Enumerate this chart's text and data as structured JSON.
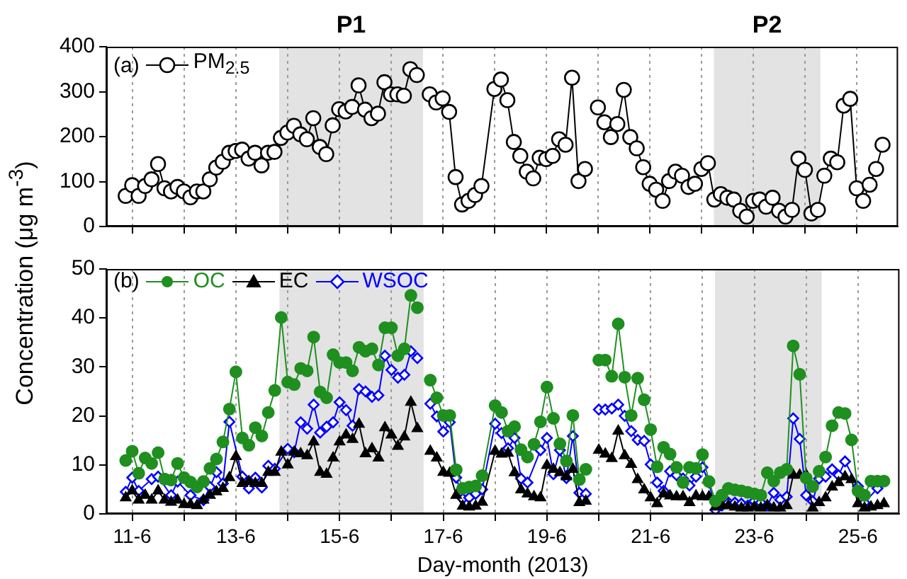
{
  "chart_data": [
    {
      "type": "line",
      "ylabel": "Concentration (μg m$^{-3}$)",
      "annotations": [
        "(a)"
      ],
      "xlim": [
        "2013-06-10T12:00",
        "2013-06-25T19:12"
      ],
      "xticks": [
        {
          "value": "2013-06-11",
          "label": null
        },
        {
          "value": "2013-06-12",
          "label": null
        },
        {
          "value": "2013-06-13",
          "label": null
        },
        {
          "value": "2013-06-14",
          "label": null
        },
        {
          "value": "2013-06-15",
          "label": null
        },
        {
          "value": "2013-06-16",
          "label": null
        },
        {
          "value": "2013-06-17",
          "label": null
        },
        {
          "value": "2013-06-18",
          "label": null
        },
        {
          "value": "2013-06-19",
          "label": null
        },
        {
          "value": "2013-06-20",
          "label": null
        },
        {
          "value": "2013-06-21",
          "label": null
        },
        {
          "value": "2013-06-22",
          "label": null
        },
        {
          "value": "2013-06-23",
          "label": null
        },
        {
          "value": "2013-06-24",
          "label": null
        },
        {
          "value": "2013-06-25",
          "label": null
        }
      ],
      "ylim": [
        0,
        400
      ],
      "yticks": [
        0,
        100,
        200,
        300,
        400
      ],
      "tick_labels": "y",
      "grid": "x",
      "legend": "top left",
      "bands": [
        {
          "axis": "x",
          "from": "2013-06-13T20:10",
          "to": "2013-06-16T14:53",
          "label": "P1",
          "color": "#e3e3e3"
        },
        {
          "axis": "x",
          "from": "2013-06-22T05:46",
          "to": "2013-06-24T07:12",
          "label": "P2",
          "color": "#e3e3e3"
        }
      ],
      "x": [
        "2013-06-10T21:00",
        "2013-06-11T00:00",
        "2013-06-11T03:00",
        "2013-06-11T06:00",
        "2013-06-11T09:00",
        "2013-06-11T12:00",
        "2013-06-11T15:00",
        "2013-06-11T18:00",
        "2013-06-11T21:00",
        "2013-06-12T00:00",
        "2013-06-12T03:00",
        "2013-06-12T06:00",
        "2013-06-12T09:00",
        "2013-06-12T12:00",
        "2013-06-12T15:00",
        "2013-06-12T18:00",
        "2013-06-12T21:00",
        "2013-06-13T00:00",
        "2013-06-13T03:00",
        "2013-06-13T06:00",
        "2013-06-13T09:00",
        "2013-06-13T12:00",
        "2013-06-13T15:00",
        "2013-06-13T18:00",
        "2013-06-13T21:00",
        "2013-06-14T00:00",
        "2013-06-14T03:00",
        "2013-06-14T06:00",
        "2013-06-14T09:00",
        "2013-06-14T12:00",
        "2013-06-14T15:00",
        "2013-06-14T18:00",
        "2013-06-14T21:00",
        "2013-06-15T00:00",
        "2013-06-15T03:00",
        "2013-06-15T06:00",
        "2013-06-15T09:00",
        "2013-06-15T12:00",
        "2013-06-15T15:00",
        "2013-06-15T18:00",
        "2013-06-15T21:00",
        "2013-06-16T00:00",
        "2013-06-16T03:00",
        "2013-06-16T06:00",
        "2013-06-16T09:00",
        "2013-06-16T12:00",
        "2013-06-16T15:00",
        "2013-06-16T18:00",
        "2013-06-16T21:00",
        "2013-06-17T00:00",
        "2013-06-17T03:00",
        "2013-06-17T06:00",
        "2013-06-17T09:00",
        "2013-06-17T12:00",
        "2013-06-17T15:00",
        "2013-06-17T18:00",
        "2013-06-18T00:00",
        "2013-06-18T03:00",
        "2013-06-18T06:00",
        "2013-06-18T09:00",
        "2013-06-18T12:00",
        "2013-06-18T15:00",
        "2013-06-18T18:00",
        "2013-06-18T21:00",
        "2013-06-19T00:00",
        "2013-06-19T03:00",
        "2013-06-19T06:00",
        "2013-06-19T09:00",
        "2013-06-19T12:00",
        "2013-06-19T15:00",
        "2013-06-19T18:00",
        "2013-06-19T21:00",
        "2013-06-20T00:00",
        "2013-06-20T03:00",
        "2013-06-20T06:00",
        "2013-06-20T09:00",
        "2013-06-20T12:00",
        "2013-06-20T15:00",
        "2013-06-20T18:00",
        "2013-06-20T21:00",
        "2013-06-21T00:00",
        "2013-06-21T03:00",
        "2013-06-21T06:00",
        "2013-06-21T09:00",
        "2013-06-21T12:00",
        "2013-06-21T15:00",
        "2013-06-21T18:00",
        "2013-06-21T21:00",
        "2013-06-22T00:00",
        "2013-06-22T03:00",
        "2013-06-22T06:00",
        "2013-06-22T09:00",
        "2013-06-22T12:00",
        "2013-06-22T15:00",
        "2013-06-22T18:00",
        "2013-06-22T21:00",
        "2013-06-23T00:00",
        "2013-06-23T03:00",
        "2013-06-23T06:00",
        "2013-06-23T09:00",
        "2013-06-23T12:00",
        "2013-06-23T15:00",
        "2013-06-23T18:00",
        "2013-06-23T21:00",
        "2013-06-24T00:00",
        "2013-06-24T03:00",
        "2013-06-24T06:00",
        "2013-06-24T09:00",
        "2013-06-24T12:00",
        "2013-06-24T15:00",
        "2013-06-24T18:00",
        "2013-06-24T21:00",
        "2013-06-25T00:00",
        "2013-06-25T03:00",
        "2013-06-25T06:00",
        "2013-06-25T09:00",
        "2013-06-25T12:00"
      ],
      "series": [
        {
          "name": "PM$_{2.5}$",
          "color": "#000000",
          "marker": "circle",
          "values": [
            68,
            92,
            68,
            90,
            105,
            139,
            85,
            78,
            88,
            78,
            65,
            78,
            78,
            105,
            131,
            144,
            164,
            168,
            171,
            151,
            164,
            136,
            164,
            166,
            197,
            209,
            224,
            205,
            194,
            241,
            177,
            161,
            225,
            261,
            256,
            266,
            314,
            260,
            241,
            251,
            321,
            294,
            294,
            291,
            350,
            337,
            null,
            294,
            276,
            285,
            255,
            110,
            49,
            57,
            70,
            90,
            306,
            327,
            281,
            188,
            157,
            122,
            107,
            153,
            150,
            157,
            194,
            182,
            331,
            101,
            128,
            null,
            265,
            232,
            199,
            228,
            304,
            199,
            174,
            132,
            95,
            82,
            57,
            101,
            122,
            113,
            88,
            95,
            128,
            141,
            60,
            72,
            64,
            60,
            35,
            22,
            57,
            60,
            44,
            64,
            35,
            22,
            37,
            151,
            126,
            29,
            37,
            113,
            151,
            143,
            269,
            284,
            85,
            57,
            93,
            128,
            182
          ]
        }
      ]
    },
    {
      "type": "line",
      "xlabel": "Day-month (2013)",
      "annotations": [
        "(b)"
      ],
      "xlim": [
        "2013-06-10T12:00",
        "2013-06-25T19:12"
      ],
      "xticks": [
        {
          "value": "2013-06-11",
          "label": "11-6"
        },
        {
          "value": "2013-06-12",
          "label": null
        },
        {
          "value": "2013-06-13",
          "label": "13-6"
        },
        {
          "value": "2013-06-14",
          "label": null
        },
        {
          "value": "2013-06-15",
          "label": "15-6"
        },
        {
          "value": "2013-06-16",
          "label": null
        },
        {
          "value": "2013-06-17",
          "label": "17-6"
        },
        {
          "value": "2013-06-18",
          "label": null
        },
        {
          "value": "2013-06-19",
          "label": "19-6"
        },
        {
          "value": "2013-06-20",
          "label": null
        },
        {
          "value": "2013-06-21",
          "label": "21-6"
        },
        {
          "value": "2013-06-22",
          "label": null
        },
        {
          "value": "2013-06-23",
          "label": "23-6"
        },
        {
          "value": "2013-06-24",
          "label": null
        },
        {
          "value": "2013-06-25",
          "label": "25-6"
        }
      ],
      "ylim": [
        0,
        50
      ],
      "yticks": [
        0,
        10,
        20,
        30,
        40,
        50
      ],
      "grid": "x",
      "legend": "top left",
      "bands": [
        {
          "axis": "x",
          "from": "2013-06-13T20:10",
          "to": "2013-06-16T14:53",
          "color": "#e3e3e3"
        },
        {
          "axis": "x",
          "from": "2013-06-22T05:46",
          "to": "2013-06-24T07:12",
          "color": "#e3e3e3"
        }
      ],
      "x": [
        "2013-06-10T21:00",
        "2013-06-11T00:00",
        "2013-06-11T03:00",
        "2013-06-11T06:00",
        "2013-06-11T09:00",
        "2013-06-11T12:00",
        "2013-06-11T15:00",
        "2013-06-11T18:00",
        "2013-06-11T21:00",
        "2013-06-12T00:00",
        "2013-06-12T03:00",
        "2013-06-12T06:00",
        "2013-06-12T09:00",
        "2013-06-12T12:00",
        "2013-06-12T15:00",
        "2013-06-12T18:00",
        "2013-06-12T21:00",
        "2013-06-13T00:00",
        "2013-06-13T03:00",
        "2013-06-13T06:00",
        "2013-06-13T09:00",
        "2013-06-13T12:00",
        "2013-06-13T15:00",
        "2013-06-13T18:00",
        "2013-06-13T21:00",
        "2013-06-14T00:00",
        "2013-06-14T03:00",
        "2013-06-14T06:00",
        "2013-06-14T09:00",
        "2013-06-14T12:00",
        "2013-06-14T15:00",
        "2013-06-14T18:00",
        "2013-06-14T21:00",
        "2013-06-15T00:00",
        "2013-06-15T03:00",
        "2013-06-15T06:00",
        "2013-06-15T09:00",
        "2013-06-15T12:00",
        "2013-06-15T15:00",
        "2013-06-15T18:00",
        "2013-06-15T21:00",
        "2013-06-16T00:00",
        "2013-06-16T03:00",
        "2013-06-16T06:00",
        "2013-06-16T09:00",
        "2013-06-16T12:00",
        "2013-06-16T15:00",
        "2013-06-16T18:00",
        "2013-06-16T21:00",
        "2013-06-17T00:00",
        "2013-06-17T03:00",
        "2013-06-17T06:00",
        "2013-06-17T09:00",
        "2013-06-17T12:00",
        "2013-06-17T15:00",
        "2013-06-17T18:00",
        "2013-06-18T00:00",
        "2013-06-18T03:00",
        "2013-06-18T06:00",
        "2013-06-18T09:00",
        "2013-06-18T12:00",
        "2013-06-18T15:00",
        "2013-06-18T18:00",
        "2013-06-18T21:00",
        "2013-06-19T00:00",
        "2013-06-19T03:00",
        "2013-06-19T06:00",
        "2013-06-19T09:00",
        "2013-06-19T12:00",
        "2013-06-19T15:00",
        "2013-06-19T18:00",
        "2013-06-19T21:00",
        "2013-06-20T00:00",
        "2013-06-20T03:00",
        "2013-06-20T06:00",
        "2013-06-20T09:00",
        "2013-06-20T12:00",
        "2013-06-20T15:00",
        "2013-06-20T18:00",
        "2013-06-20T21:00",
        "2013-06-21T00:00",
        "2013-06-21T03:00",
        "2013-06-21T06:00",
        "2013-06-21T09:00",
        "2013-06-21T12:00",
        "2013-06-21T15:00",
        "2013-06-21T18:00",
        "2013-06-21T21:00",
        "2013-06-22T00:00",
        "2013-06-22T03:00",
        "2013-06-22T06:00",
        "2013-06-22T09:00",
        "2013-06-22T12:00",
        "2013-06-22T15:00",
        "2013-06-22T18:00",
        "2013-06-22T21:00",
        "2013-06-23T00:00",
        "2013-06-23T03:00",
        "2013-06-23T06:00",
        "2013-06-23T09:00",
        "2013-06-23T12:00",
        "2013-06-23T15:00",
        "2013-06-23T18:00",
        "2013-06-23T21:00",
        "2013-06-24T00:00",
        "2013-06-24T03:00",
        "2013-06-24T06:00",
        "2013-06-24T09:00",
        "2013-06-24T12:00",
        "2013-06-24T15:00",
        "2013-06-24T18:00",
        "2013-06-24T21:00",
        "2013-06-25T00:00",
        "2013-06-25T03:00",
        "2013-06-25T06:00",
        "2013-06-25T09:00",
        "2013-06-25T12:00"
      ],
      "series": [
        {
          "name": "OC",
          "color": "#1f8f1f",
          "marker": "circle",
          "values": [
            10.9,
            12.8,
            8.3,
            11.4,
            10.3,
            12.5,
            7.1,
            6.9,
            10.3,
            7.4,
            6.5,
            5.5,
            6.6,
            9.3,
            11.2,
            14.7,
            21.4,
            29.0,
            15.5,
            14.0,
            17.6,
            15.9,
            20.7,
            25.2,
            40.1,
            26.9,
            26.4,
            29.7,
            29.2,
            36.1,
            24.9,
            23.7,
            32.5,
            30.9,
            30.9,
            29.2,
            34.0,
            33.2,
            33.7,
            30.4,
            38.0,
            38.0,
            32.3,
            33.7,
            44.6,
            42.1,
            null,
            27.3,
            23.7,
            20.1,
            20.1,
            9.0,
            5.2,
            5.5,
            5.7,
            7.8,
            22.1,
            20.7,
            16.9,
            17.8,
            13.1,
            11.6,
            14.2,
            18.8,
            25.9,
            19.5,
            14.3,
            10.8,
            20.1,
            7.0,
            9.1,
            null,
            31.4,
            31.4,
            28.1,
            38.8,
            27.9,
            20.1,
            27.7,
            23.3,
            17.2,
            9.6,
            13.6,
            12.2,
            9.5,
            6.4,
            9.5,
            9.3,
            12.1,
            6.6,
            2.6,
            3.8,
            5.2,
            4.9,
            4.7,
            4.4,
            4.1,
            3.8,
            8.4,
            6.7,
            8.4,
            9.1,
            34.3,
            28.5,
            7.3,
            5.6,
            8.7,
            11.6,
            18.0,
            20.7,
            20.5,
            15.1,
            4.7,
            3.8,
            6.7,
            6.7,
            6.7
          ]
        },
        {
          "name": "EC",
          "color": "#000000",
          "marker": "triangle",
          "values": [
            3.3,
            4.7,
            2.8,
            3.8,
            2.8,
            4.7,
            2.8,
            2.4,
            2.8,
            1.9,
            1.9,
            1.7,
            2.8,
            3.8,
            4.5,
            5.2,
            7.4,
            11.7,
            6.2,
            6.6,
            6.2,
            6.2,
            8.5,
            8.5,
            12.6,
            10.0,
            12.6,
            12.3,
            11.9,
            14.7,
            8.5,
            8.1,
            11.4,
            14.7,
            16.1,
            15.2,
            18.3,
            12.3,
            13.3,
            11.4,
            17.6,
            16.1,
            13.8,
            15.7,
            22.8,
            17.4,
            null,
            12.8,
            11.4,
            8.5,
            8.3,
            3.8,
            1.6,
            1.4,
            1.6,
            2.4,
            12.8,
            12.2,
            12.4,
            8.4,
            4.9,
            4.1,
            3.5,
            3.3,
            9.9,
            9.1,
            8.4,
            7.6,
            9.1,
            2.3,
            2.6,
            null,
            13.0,
            12.2,
            11.3,
            16.9,
            11.9,
            10.1,
            7.0,
            4.9,
            3.3,
            2.1,
            4.1,
            3.7,
            3.5,
            3.5,
            2.3,
            3.7,
            3.5,
            3.5,
            1.4,
            1.7,
            1.7,
            1.4,
            1.2,
            1.2,
            1.4,
            1.2,
            1.7,
            1.2,
            1.2,
            1.7,
            7.9,
            7.9,
            7.9,
            1.2,
            2.3,
            3.3,
            5.5,
            6.4,
            7.6,
            7.0,
            2.1,
            1.2,
            1.4,
            1.7,
            2.1
          ]
        },
        {
          "name": "WSOC",
          "color": "#0000ff",
          "marker": "diamond",
          "x": [
            "2013-06-10T21:00",
            "2013-06-11T00:00",
            "2013-06-11T03:00",
            "2013-06-11T09:00",
            "2013-06-11T12:00",
            "2013-06-11T18:00",
            "2013-06-11T21:00",
            "2013-06-12T03:00",
            "2013-06-12T09:00",
            "2013-06-12T12:00",
            "2013-06-12T15:00",
            "2013-06-12T18:00",
            "2013-06-12T21:00",
            "2013-06-13T03:00",
            "2013-06-13T06:00",
            "2013-06-13T09:00",
            "2013-06-13T12:00",
            "2013-06-13T15:00",
            "2013-06-13T18:00",
            "2013-06-14T00:00",
            "2013-06-14T03:00",
            "2013-06-14T06:00",
            "2013-06-14T09:00",
            "2013-06-14T12:00",
            "2013-06-14T15:00",
            "2013-06-14T18:00",
            "2013-06-14T21:00",
            "2013-06-15T00:00",
            "2013-06-15T03:00",
            "2013-06-15T06:00",
            "2013-06-15T09:00",
            "2013-06-15T12:00",
            "2013-06-15T15:00",
            "2013-06-15T18:00",
            "2013-06-15T21:00",
            "2013-06-16T00:00",
            "2013-06-16T03:00",
            "2013-06-16T06:00",
            "2013-06-16T09:00",
            "2013-06-16T12:00",
            "2013-06-16T15:00",
            "2013-06-16T18:00",
            "2013-06-16T21:00",
            "2013-06-17T00:00",
            "2013-06-17T03:00",
            "2013-06-17T06:00",
            "2013-06-17T09:00",
            "2013-06-17T12:00",
            "2013-06-17T15:00",
            "2013-06-17T18:00",
            "2013-06-18T00:00",
            "2013-06-18T03:00",
            "2013-06-18T06:00",
            "2013-06-18T09:00",
            "2013-06-18T12:00",
            "2013-06-18T15:00",
            "2013-06-18T21:00",
            "2013-06-19T00:00",
            "2013-06-19T03:00",
            "2013-06-19T06:00",
            "2013-06-19T09:00",
            "2013-06-19T12:00",
            "2013-06-19T15:00",
            "2013-06-19T18:00",
            "2013-06-19T21:00",
            "2013-06-20T00:00",
            "2013-06-20T03:00",
            "2013-06-20T06:00",
            "2013-06-20T09:00",
            "2013-06-20T12:00",
            "2013-06-20T15:00",
            "2013-06-20T18:00",
            "2013-06-20T21:00",
            "2013-06-21T00:00",
            "2013-06-21T03:00",
            "2013-06-21T06:00",
            "2013-06-21T09:00",
            "2013-06-21T12:00",
            "2013-06-21T15:00",
            "2013-06-21T18:00",
            "2013-06-21T21:00",
            "2013-06-22T00:00",
            "2013-06-22T03:00",
            "2013-06-22T06:00",
            "2013-06-22T09:00",
            "2013-06-22T12:00",
            "2013-06-22T15:00",
            "2013-06-22T18:00",
            "2013-06-22T21:00",
            "2013-06-23T00:00",
            "2013-06-23T03:00",
            "2013-06-23T06:00",
            "2013-06-23T09:00",
            "2013-06-23T12:00",
            "2013-06-23T15:00",
            "2013-06-23T18:00",
            "2013-06-23T21:00",
            "2013-06-24T00:00",
            "2013-06-24T03:00",
            "2013-06-24T06:00",
            "2013-06-24T09:00",
            "2013-06-24T12:00",
            "2013-06-24T15:00",
            "2013-06-24T18:00",
            "2013-06-25T00:00",
            "2013-06-25T03:00",
            "2013-06-25T09:00"
          ],
          "values": [
            4.5,
            7.4,
            4.7,
            7.1,
            7.6,
            3.8,
            6.6,
            3.8,
            2.8,
            5.5,
            8.5,
            6.2,
            18.8,
            7.6,
            5.2,
            7.4,
            5.4,
            9.8,
            9.2,
            13.3,
            12.6,
            18.7,
            17.4,
            22.3,
            16.6,
            17.8,
            18.7,
            22.8,
            21.2,
            18.0,
            25.5,
            25.0,
            23.9,
            24.2,
            32.3,
            29.4,
            27.8,
            28.4,
            33.2,
            31.8,
            null,
            22.5,
            19.9,
            16.8,
            18.7,
            7.4,
            3.1,
            3.3,
            4.1,
            5.0,
            18.4,
            16.5,
            13.4,
            15.5,
            7.2,
            6.4,
            13.0,
            15.5,
            8.1,
            13.0,
            7.3,
            15.9,
            4.3,
            4.1,
            null,
            21.3,
            21.3,
            21.5,
            22.3,
            20.0,
            16.9,
            15.1,
            14.9,
            10.1,
            6.4,
            4.7,
            8.7,
            7.9,
            7.2,
            5.8,
            7.6,
            9.5,
            6.4,
            0.8,
            1.7,
            2.3,
            2.3,
            2.1,
            1.7,
            2.6,
            2.3,
            1.7,
            4.3,
            2.9,
            3.5,
            19.5,
            15.3,
            3.8,
            2.6,
            7.2,
            7.6,
            9.1,
            7.9,
            10.7,
            5.6,
            2.3,
            5.2
          ]
        }
      ]
    }
  ]
}
